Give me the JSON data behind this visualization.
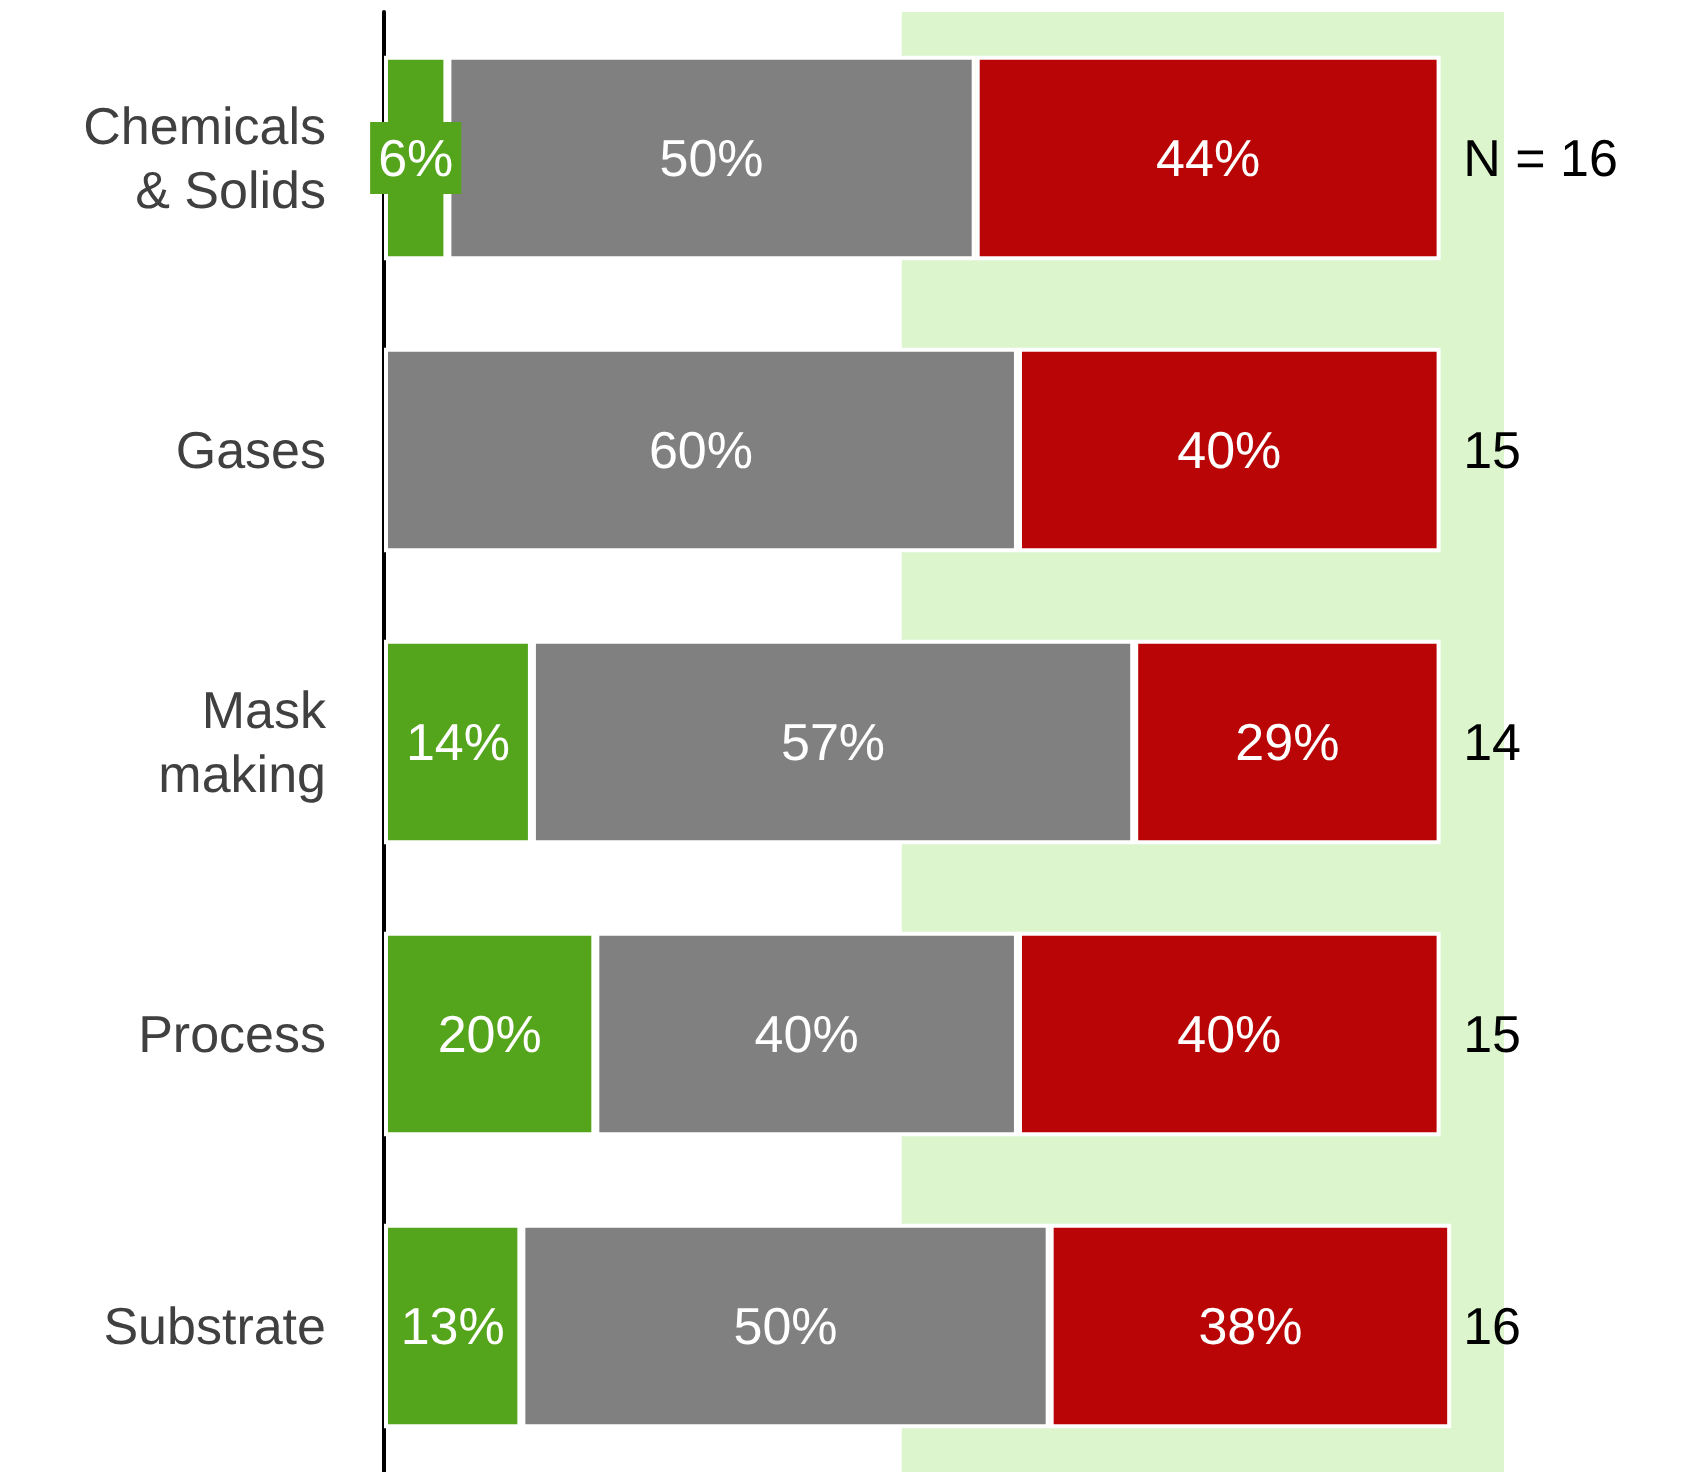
{
  "chart_data": {
    "type": "bar",
    "orientation": "horizontal",
    "stacked": true,
    "categories": [
      "Chemicals\n& Solids",
      "Gases",
      "Mask\nmaking",
      "Process",
      "Substrate"
    ],
    "series": [
      {
        "color": "#55a51c",
        "values": [
          6,
          null,
          14,
          20,
          13
        ],
        "value_labels": [
          "6%",
          null,
          "14%",
          "20%",
          "13%"
        ]
      },
      {
        "color": "#808080",
        "values": [
          50,
          60,
          57,
          40,
          50
        ],
        "value_labels": [
          "50%",
          "60%",
          "57%",
          "40%",
          "50%"
        ]
      },
      {
        "color": "#b90505",
        "values": [
          44,
          40,
          29,
          40,
          38
        ],
        "value_labels": [
          "44%",
          "40%",
          "29%",
          "40%",
          "38%"
        ]
      }
    ],
    "xlim": [
      0,
      106
    ],
    "tick_labels": "y",
    "bands": [
      {
        "axis": "x",
        "from": 49,
        "to": 106,
        "color": "#dcf5cc"
      }
    ],
    "annotations": [
      "N = 16",
      "15",
      "14",
      "15",
      "16"
    ]
  }
}
